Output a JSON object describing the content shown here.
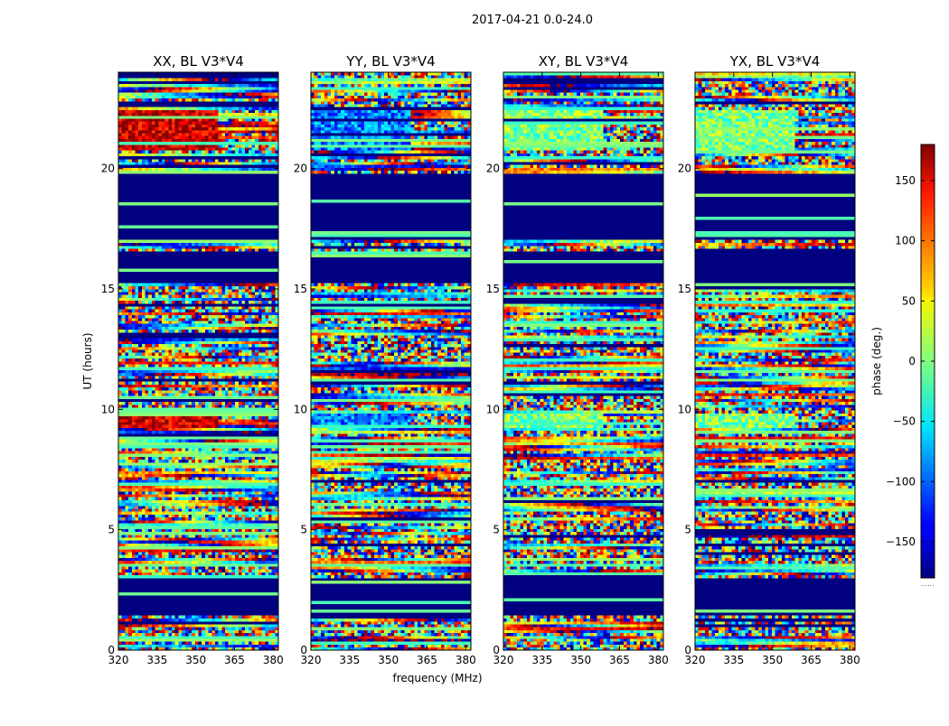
{
  "chart_data": {
    "type": "heatmap",
    "suptitle": "2017-04-21 0.0-24.0",
    "xlabel": "frequency (MHz)",
    "ylabel": "UT (hours)",
    "xlim": [
      320,
      382
    ],
    "ylim": [
      0,
      24
    ],
    "xticks": [
      320,
      335,
      350,
      365,
      380
    ],
    "yticks": [
      0,
      5,
      10,
      15,
      20
    ],
    "panels": [
      {
        "title": "XX, BL V3*V4",
        "pol": "XX"
      },
      {
        "title": "YY, BL V3*V4",
        "pol": "YY"
      },
      {
        "title": "XY, BL V3*V4",
        "pol": "XY"
      },
      {
        "title": "YX, BL V3*V4",
        "pol": "YX"
      }
    ],
    "flagged_value": -180,
    "flagged_ranges_ut": [
      [
        1.5,
        2.95
      ],
      [
        15.2,
        16.6
      ],
      [
        17.0,
        19.8
      ]
    ],
    "strong_feature_ranges_ut": [
      [
        20.8,
        22.4
      ],
      [
        9.3,
        9.8
      ]
    ],
    "colorbar": {
      "label": "phase (deg.)",
      "range": [
        -180,
        180
      ],
      "ticks": [
        -150,
        -100,
        -50,
        0,
        50,
        100,
        150
      ],
      "footnote": "......"
    }
  }
}
